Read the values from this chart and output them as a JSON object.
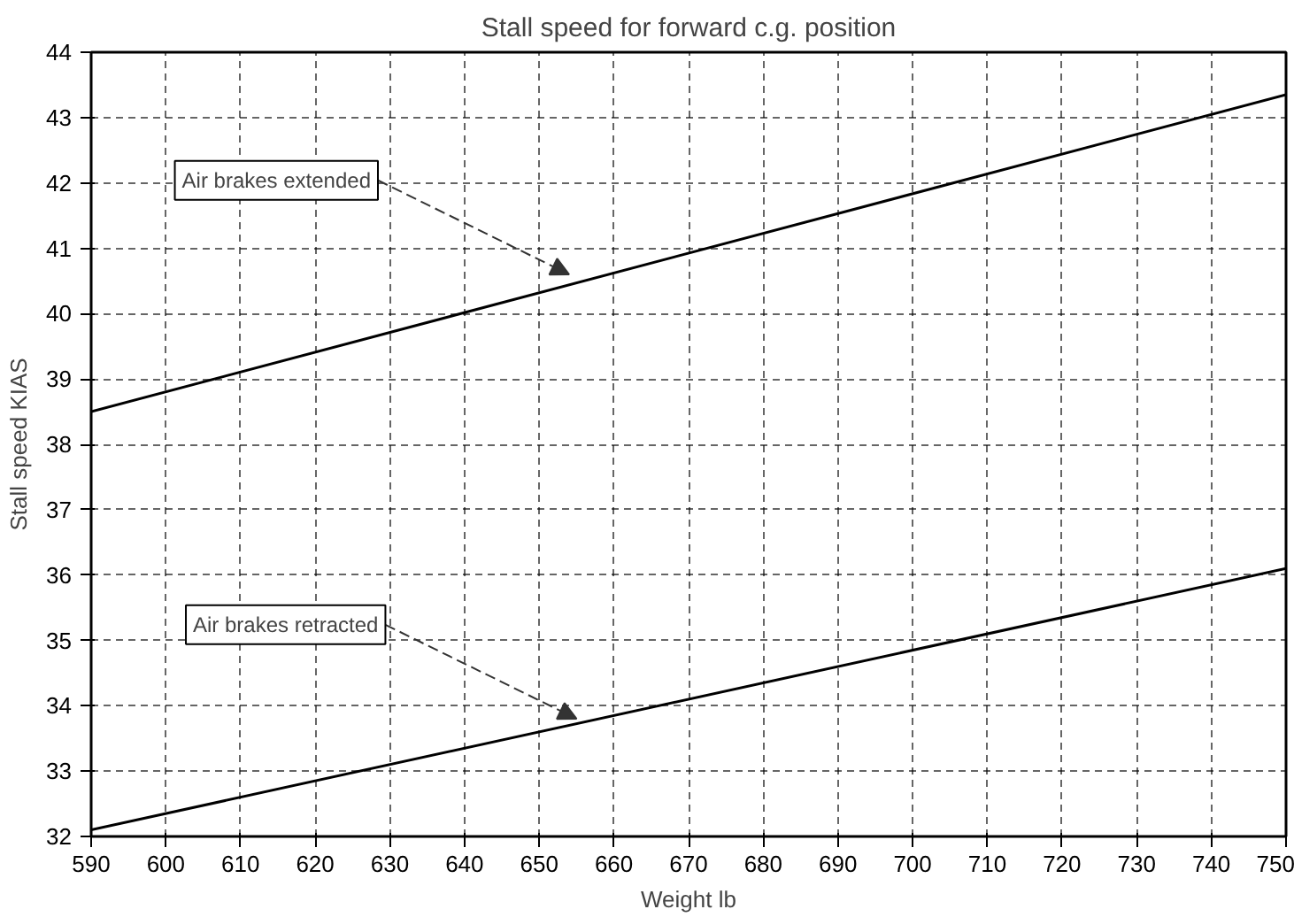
{
  "chart_data": {
    "type": "line",
    "title": "Stall speed for forward c.g. position",
    "xlabel": "Weight lb",
    "ylabel": "Stall speed KIAS",
    "x": [
      590,
      750
    ],
    "series": [
      {
        "color": "#000000",
        "values": [
          38.5,
          43.35
        ]
      },
      {
        "color": "#000000",
        "values": [
          32.1,
          36.1
        ]
      }
    ],
    "annotations": [
      {
        "text": "Air brakes extended",
        "x": 654,
        "y": 40.6
      },
      {
        "text": "Air brakes retracted",
        "x": 655,
        "y": 33.8
      }
    ],
    "xlim": [
      590,
      750
    ],
    "ylim": [
      32,
      44
    ],
    "xticks": [
      590,
      600,
      610,
      620,
      630,
      640,
      650,
      660,
      670,
      680,
      690,
      700,
      710,
      720,
      730,
      740,
      750
    ],
    "yticks": [
      32,
      33,
      34,
      35,
      36,
      37,
      38,
      39,
      40,
      41,
      42,
      43,
      44
    ],
    "grid": true,
    "marker": "none",
    "line_style": "solid"
  }
}
